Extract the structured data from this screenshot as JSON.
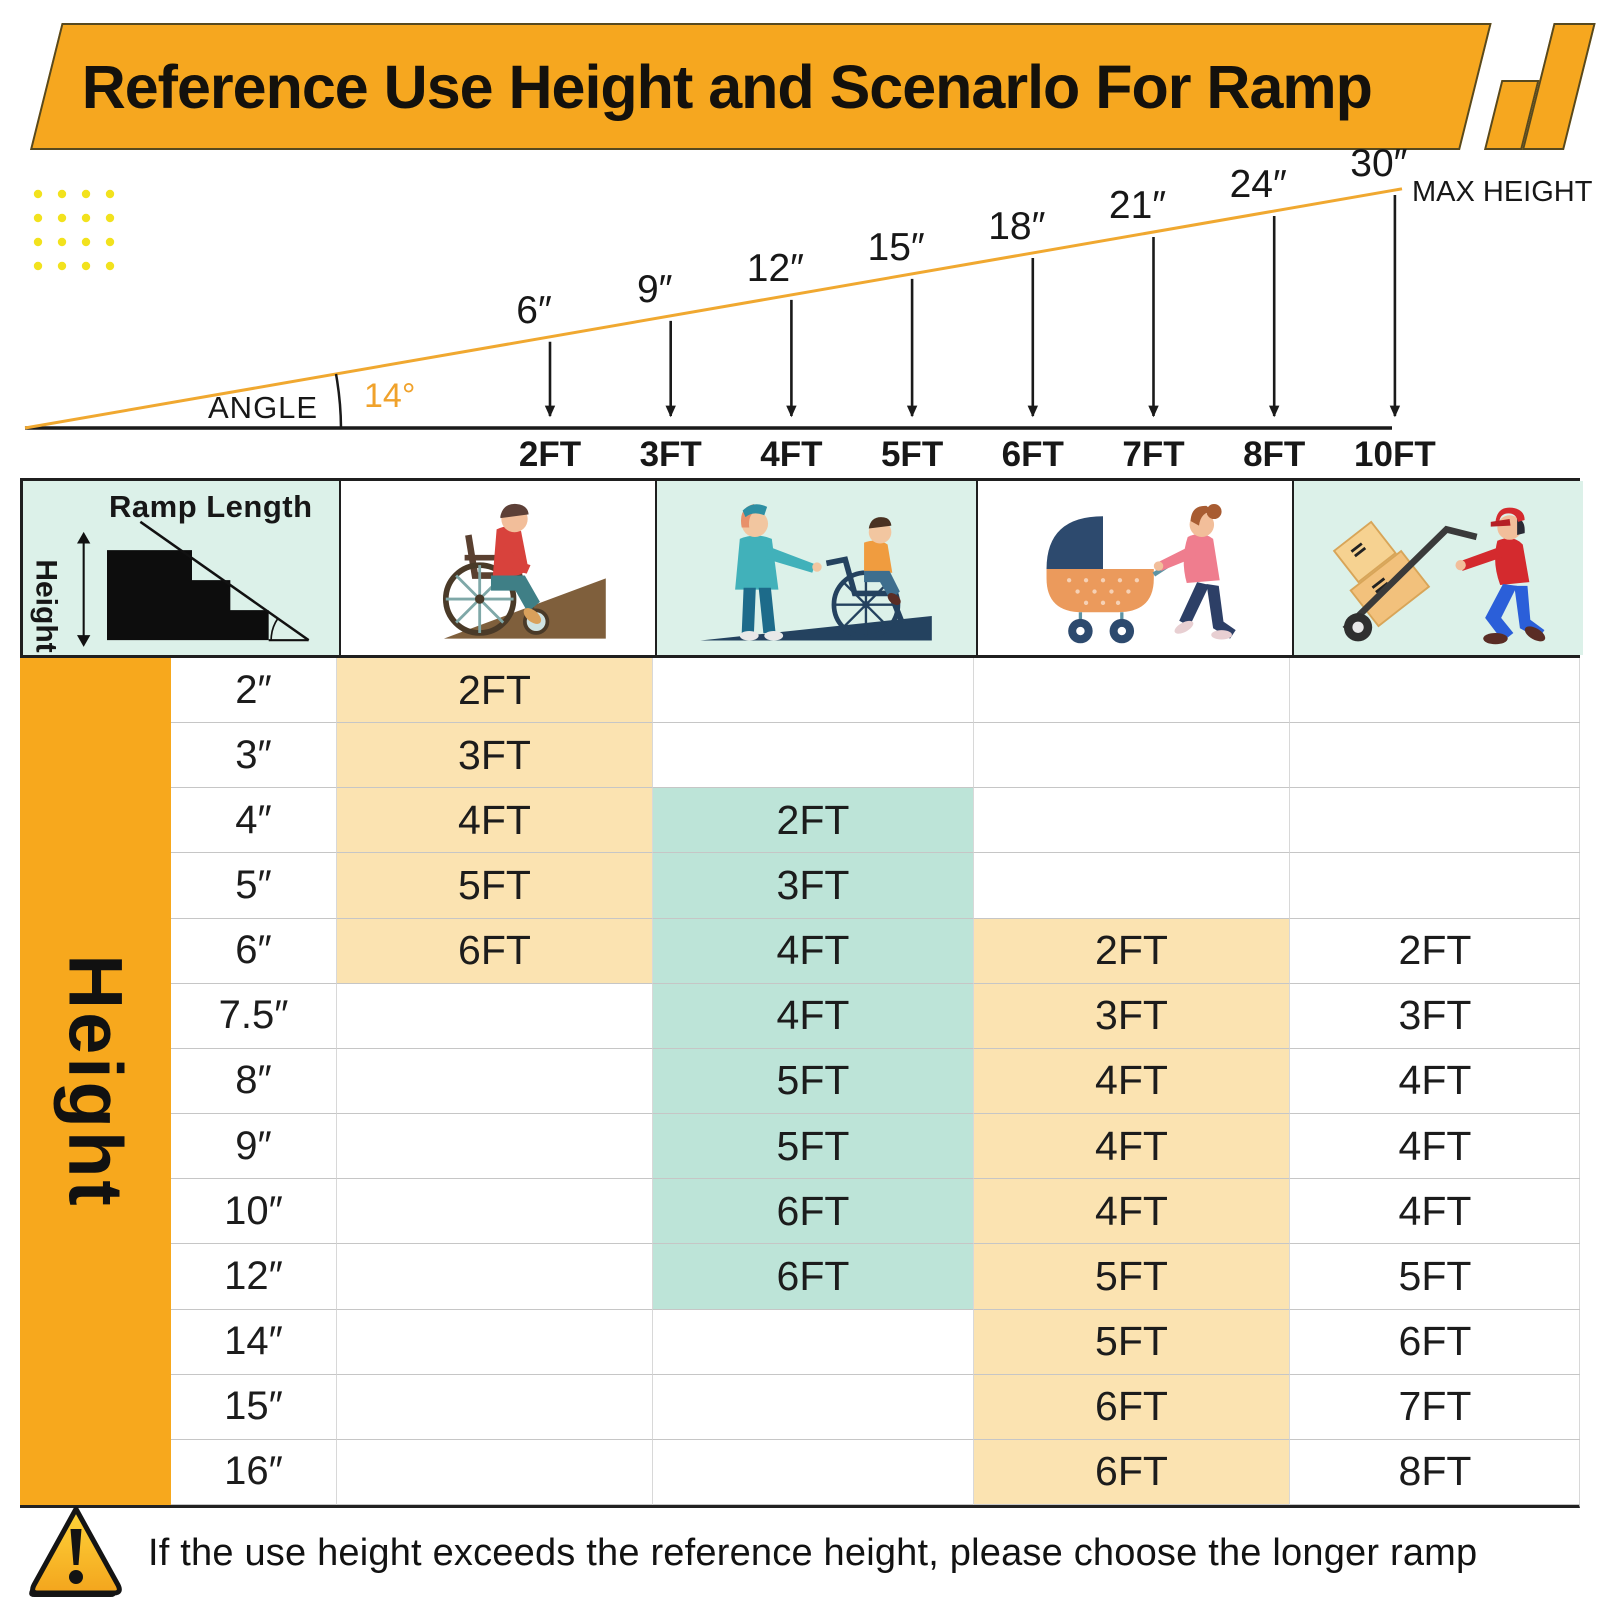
{
  "title": "Reference Use Height and Scenarlo For Ramp",
  "diagram": {
    "angle_label": "ANGLE",
    "angle_value": "14°",
    "max_height_label": "MAX HEIGHT",
    "points": [
      {
        "height": "6″",
        "length": "2FT"
      },
      {
        "height": "9″",
        "length": "3FT"
      },
      {
        "height": "12″",
        "length": "4FT"
      },
      {
        "height": "15″",
        "length": "5FT"
      },
      {
        "height": "18″",
        "length": "6FT"
      },
      {
        "height": "21″",
        "length": "7FT"
      },
      {
        "height": "24″",
        "length": "8FT"
      },
      {
        "height": "30″",
        "length": "10FT"
      }
    ]
  },
  "table": {
    "corner": {
      "ramp_length": "Ramp Length",
      "height_label": "Height"
    },
    "side_label": "Height",
    "columns": [
      {
        "icon": "wheelchair-user"
      },
      {
        "icon": "assisted-wheelchair"
      },
      {
        "icon": "stroller"
      },
      {
        "icon": "hand-truck"
      }
    ],
    "rows": [
      {
        "height": "2″",
        "self": "2FT",
        "assisted": "",
        "stroller": "",
        "truck": ""
      },
      {
        "height": "3″",
        "self": "3FT",
        "assisted": "",
        "stroller": "",
        "truck": ""
      },
      {
        "height": "4″",
        "self": "4FT",
        "assisted": "2FT",
        "stroller": "",
        "truck": ""
      },
      {
        "height": "5″",
        "self": "5FT",
        "assisted": "3FT",
        "stroller": "",
        "truck": ""
      },
      {
        "height": "6″",
        "self": "6FT",
        "assisted": "4FT",
        "stroller": "2FT",
        "truck": "2FT"
      },
      {
        "height": "7.5″",
        "self": "",
        "assisted": "4FT",
        "stroller": "3FT",
        "truck": "3FT"
      },
      {
        "height": "8″",
        "self": "",
        "assisted": "5FT",
        "stroller": "4FT",
        "truck": "4FT"
      },
      {
        "height": "9″",
        "self": "",
        "assisted": "5FT",
        "stroller": "4FT",
        "truck": "4FT"
      },
      {
        "height": "10″",
        "self": "",
        "assisted": "6FT",
        "stroller": "4FT",
        "truck": "4FT"
      },
      {
        "height": "12″",
        "self": "",
        "assisted": "6FT",
        "stroller": "5FT",
        "truck": "5FT"
      },
      {
        "height": "14″",
        "self": "",
        "assisted": "",
        "stroller": "5FT",
        "truck": "6FT"
      },
      {
        "height": "15″",
        "self": "",
        "assisted": "",
        "stroller": "6FT",
        "truck": "7FT"
      },
      {
        "height": "16″",
        "self": "",
        "assisted": "",
        "stroller": "6FT",
        "truck": "8FT"
      }
    ]
  },
  "footer": {
    "warning": "If the use height exceeds the reference height, please choose the longer ramp"
  },
  "colors": {
    "banner_orange": "#F6A71F",
    "band_orange": "#F7A81D",
    "cell_peach": "#FBE3B1",
    "cell_teal": "#BDE4D8",
    "header_mint": "#DCF1E9",
    "ramp_line": "#F0A830",
    "dot_yellow": "#F2E21D"
  }
}
